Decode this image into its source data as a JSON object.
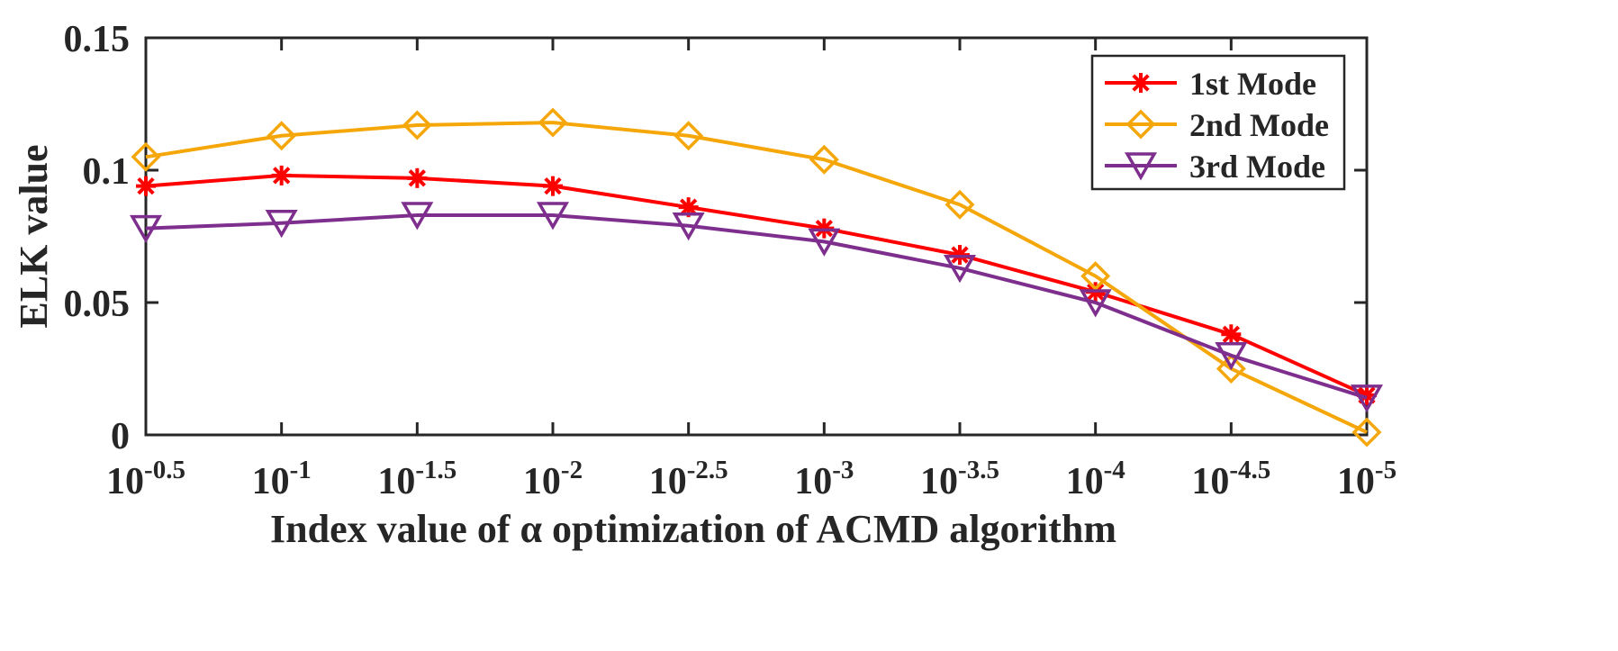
{
  "chart_data": {
    "type": "line",
    "title": "",
    "xlabel": "Index value of α optimization of ACMD algorithm",
    "ylabel": "ELK value",
    "categories": [
      {
        "base": "10",
        "exp": "-0.5"
      },
      {
        "base": "10",
        "exp": "-1"
      },
      {
        "base": "10",
        "exp": "-1.5"
      },
      {
        "base": "10",
        "exp": "-2"
      },
      {
        "base": "10",
        "exp": "-2.5"
      },
      {
        "base": "10",
        "exp": "-3"
      },
      {
        "base": "10",
        "exp": "-3.5"
      },
      {
        "base": "10",
        "exp": "-4"
      },
      {
        "base": "10",
        "exp": "-4.5"
      },
      {
        "base": "10",
        "exp": "-5"
      }
    ],
    "ylim": [
      0,
      0.15
    ],
    "yticks": [
      0,
      0.05,
      0.1,
      0.15
    ],
    "ytick_labels": [
      "0",
      "0.05",
      "0.1",
      "0.15"
    ],
    "grid": false,
    "legend_position": "top-right",
    "series": [
      {
        "name": "1st Mode",
        "color": "#ff0000",
        "marker": "asterisk",
        "values": [
          0.094,
          0.098,
          0.097,
          0.094,
          0.086,
          0.078,
          0.068,
          0.054,
          0.038,
          0.015
        ]
      },
      {
        "name": "2nd Mode",
        "color": "#f5a70a",
        "marker": "diamond",
        "values": [
          0.105,
          0.113,
          0.117,
          0.118,
          0.113,
          0.104,
          0.087,
          0.06,
          0.025,
          0.001
        ]
      },
      {
        "name": "3rd Mode",
        "color": "#7e2f8e",
        "marker": "triangle-down",
        "values": [
          0.078,
          0.08,
          0.083,
          0.083,
          0.079,
          0.073,
          0.063,
          0.05,
          0.03,
          0.014
        ]
      }
    ]
  }
}
